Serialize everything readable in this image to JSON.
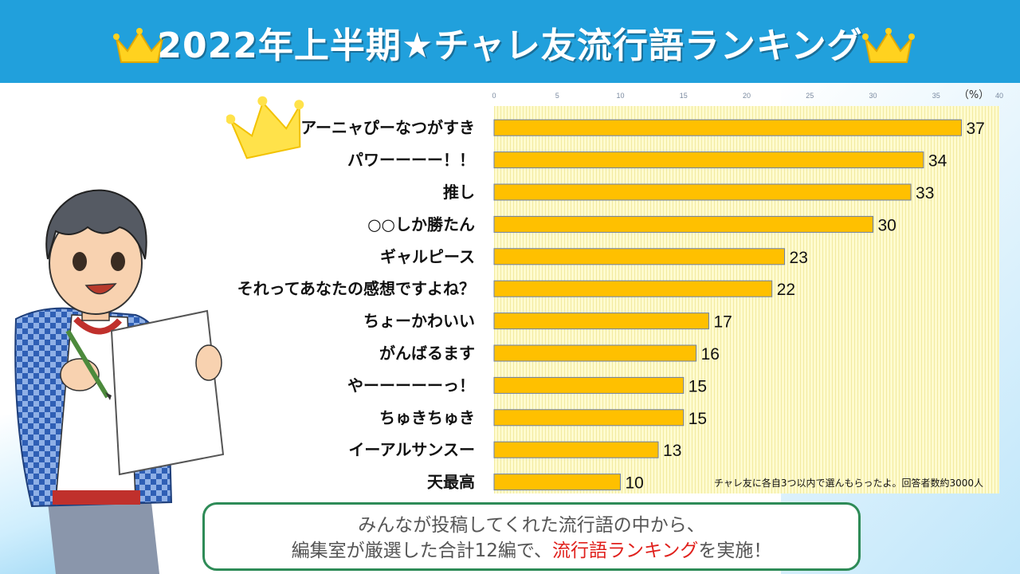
{
  "header": {
    "title": "2022年上半期★チャレ友流行語ランキング"
  },
  "colors": {
    "header_bg": "#21a0dc",
    "bar_fill": "#ffc000",
    "bar_stroke": "#6b7fa8",
    "plot_bg": "#fffbcf",
    "callout_border": "#2e8b57",
    "highlight": "#e0201c"
  },
  "chart_data": {
    "type": "bar",
    "orientation": "horizontal",
    "categories": [
      "アーニャぴーなつがすき",
      "パワーーーー！！",
      "推し",
      "○○しか勝たん",
      "ギャルピース",
      "それってあなたの感想ですよね？",
      "ちょーかわいい",
      "がんばるます",
      "やーーーーーっ！",
      "ちゅきちゅき",
      "イーアルサンスー",
      "天最高"
    ],
    "values": [
      37,
      34,
      33,
      30,
      23,
      22,
      17,
      16,
      15,
      15,
      13,
      10
    ],
    "xlim": [
      0,
      40
    ],
    "xticks": [
      "0",
      "5",
      "10",
      "15",
      "20",
      "25",
      "30",
      "35",
      "40"
    ],
    "unit_label": "（%）",
    "note": "チャレ友に各自3つ以内で選んもらったよ。回答者数約3000人",
    "grid": true
  },
  "callout": {
    "line1": "みんなが投稿してくれた流行語の中から、",
    "line2_prefix": "編集室が厳選した合計12編で、",
    "line2_highlight": "流行語ランキング",
    "line2_suffix": "を実施！"
  },
  "icons": [
    "crown-icon",
    "character-illustration"
  ]
}
